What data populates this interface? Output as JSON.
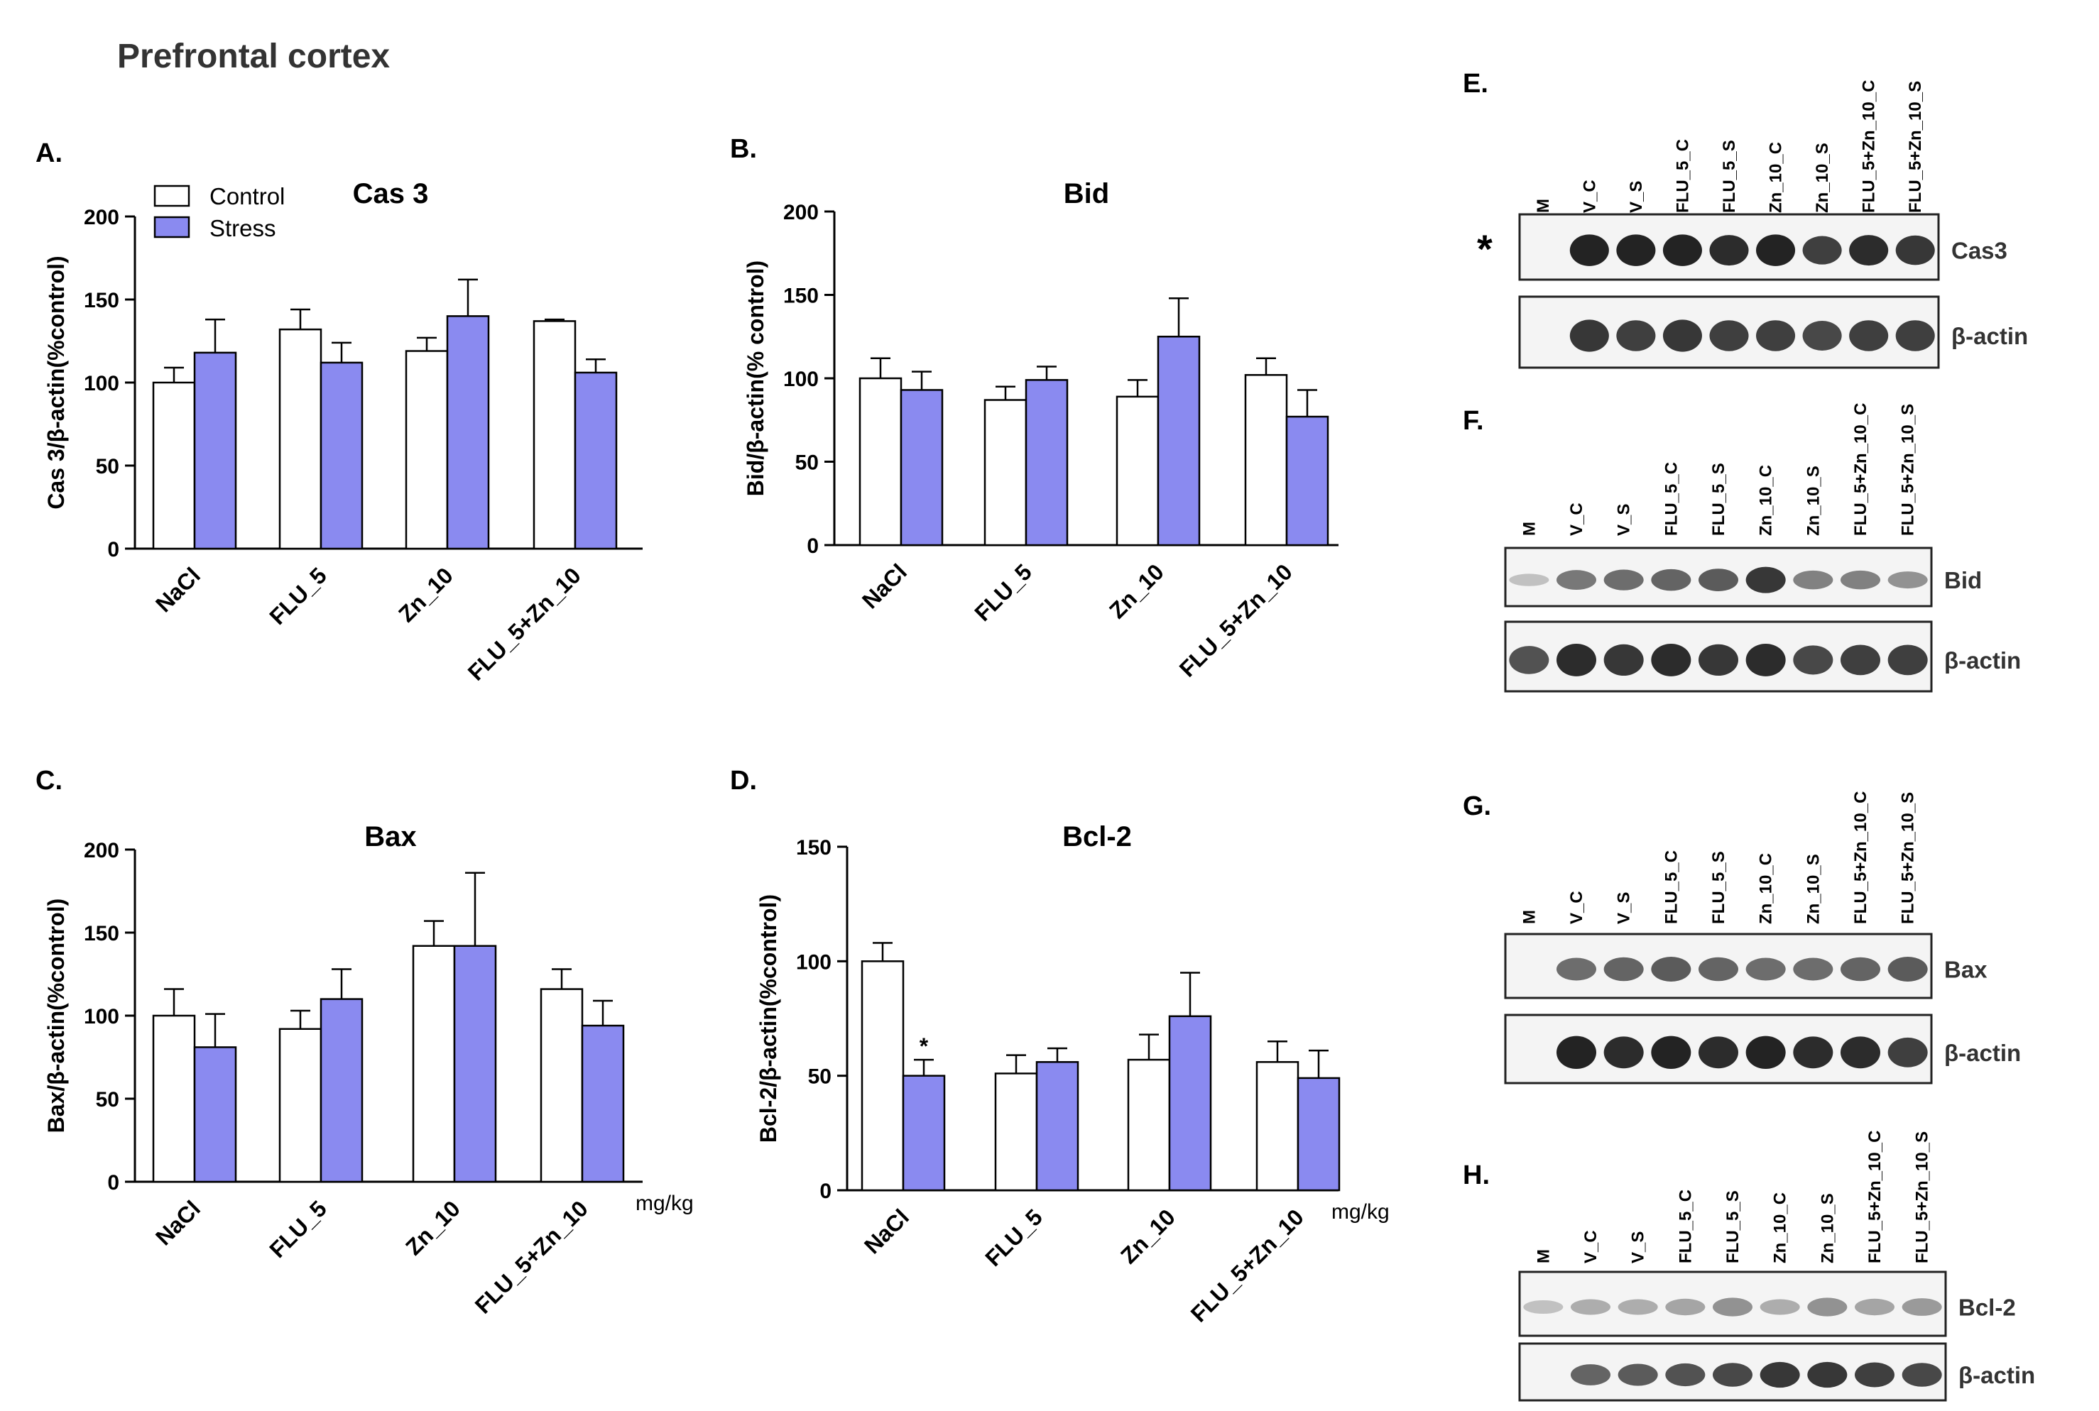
{
  "figure_title": "Prefrontal cortex",
  "unit_label": "mg/kg",
  "legend": {
    "control": "Control",
    "stress": "Stress"
  },
  "colors": {
    "control": "#ffffff",
    "stress": "#8a8af0",
    "axis": "#000000",
    "blot_bg": "#f4f4f4",
    "band": "#1a1a1a"
  },
  "chart_data": [
    {
      "panel": "A.",
      "type": "bar",
      "title": "Cas 3",
      "ylabel": "Cas 3/β-actin(%control)",
      "categories": [
        "NaCl",
        "FLU_5",
        "Zn_10",
        "FLU_5+Zn_10"
      ],
      "ylim": [
        0,
        200
      ],
      "yticks": [
        0,
        50,
        100,
        150,
        200
      ],
      "series": [
        {
          "name": "Control",
          "values": [
            100,
            132,
            119,
            137
          ],
          "errors": [
            9,
            12,
            8,
            1
          ],
          "annotations": [
            "",
            "",
            "",
            ""
          ]
        },
        {
          "name": "Stress",
          "values": [
            118,
            112,
            140,
            106
          ],
          "errors": [
            20,
            12,
            22,
            8
          ],
          "annotations": [
            "",
            "",
            "",
            ""
          ]
        }
      ]
    },
    {
      "panel": "B.",
      "type": "bar",
      "title": "Bid",
      "ylabel": "Bid/β-actin(% control)",
      "categories": [
        "NaCl",
        "FLU_5",
        "Zn_10",
        "FLU_5+Zn_10"
      ],
      "ylim": [
        0,
        200
      ],
      "yticks": [
        0,
        50,
        100,
        150,
        200
      ],
      "series": [
        {
          "name": "Control",
          "values": [
            100,
            87,
            89,
            102
          ],
          "errors": [
            12,
            8,
            10,
            10
          ],
          "annotations": [
            "",
            "",
            "",
            ""
          ]
        },
        {
          "name": "Stress",
          "values": [
            93,
            99,
            125,
            77
          ],
          "errors": [
            11,
            8,
            23,
            16
          ],
          "annotations": [
            "",
            "",
            "",
            ""
          ]
        }
      ]
    },
    {
      "panel": "C.",
      "type": "bar",
      "title": "Bax",
      "ylabel": "Bax/β-actin(%control)",
      "categories": [
        "NaCl",
        "FLU_5",
        "Zn_10",
        "FLU_5+Zn_10"
      ],
      "ylim": [
        0,
        200
      ],
      "yticks": [
        0,
        50,
        100,
        150,
        200
      ],
      "series": [
        {
          "name": "Control",
          "values": [
            100,
            92,
            142,
            116
          ],
          "errors": [
            16,
            11,
            15,
            12
          ],
          "annotations": [
            "",
            "",
            "",
            ""
          ]
        },
        {
          "name": "Stress",
          "values": [
            81,
            110,
            142,
            94
          ],
          "errors": [
            20,
            18,
            44,
            15
          ],
          "annotations": [
            "",
            "",
            "",
            ""
          ]
        }
      ]
    },
    {
      "panel": "D.",
      "type": "bar",
      "title": "Bcl-2",
      "ylabel": "Bcl-2/β-actin(%control)",
      "categories": [
        "NaCl",
        "FLU_5",
        "Zn_10",
        "FLU_5+Zn_10"
      ],
      "ylim": [
        0,
        150
      ],
      "yticks": [
        0,
        50,
        100,
        150
      ],
      "series": [
        {
          "name": "Control",
          "values": [
            100,
            51,
            57,
            56
          ],
          "errors": [
            8,
            8,
            11,
            9
          ],
          "annotations": [
            "",
            "",
            "",
            ""
          ]
        },
        {
          "name": "Stress",
          "values": [
            50,
            56,
            76,
            49
          ],
          "errors": [
            7,
            6,
            19,
            12
          ],
          "annotations": [
            "*",
            "",
            "",
            ""
          ]
        }
      ]
    }
  ],
  "blots": [
    {
      "panel": "E.",
      "marker": "*",
      "lanes": [
        "M",
        "V_C",
        "V_S",
        "FLU_5_C",
        "FLU_5_S",
        "Zn_10_C",
        "Zn_10_S",
        "FLU_5+Zn_10_C",
        "FLU_5+Zn_10_S"
      ],
      "strips": [
        {
          "label": "Cas3",
          "intensity": [
            0,
            0.95,
            0.95,
            0.95,
            0.9,
            0.95,
            0.8,
            0.9,
            0.85
          ]
        },
        {
          "label": "β-actin",
          "intensity": [
            0,
            0.85,
            0.8,
            0.85,
            0.8,
            0.8,
            0.75,
            0.8,
            0.8
          ]
        }
      ]
    },
    {
      "panel": "F.",
      "marker": "",
      "lanes": [
        "M",
        "V_C",
        "V_S",
        "FLU_5_C",
        "FLU_5_S",
        "Zn_10_C",
        "Zn_10_S",
        "FLU_5+Zn_10_C",
        "FLU_5+Zn_10_S"
      ],
      "strips": [
        {
          "label": "Bid",
          "intensity": [
            0.1,
            0.5,
            0.55,
            0.6,
            0.65,
            0.85,
            0.45,
            0.45,
            0.35
          ]
        },
        {
          "label": "β-actin",
          "intensity": [
            0.7,
            0.9,
            0.85,
            0.9,
            0.85,
            0.9,
            0.75,
            0.8,
            0.8
          ]
        }
      ]
    },
    {
      "panel": "G.",
      "marker": "",
      "lanes": [
        "M",
        "V_C",
        "V_S",
        "FLU_5_C",
        "FLU_5_S",
        "Zn_10_C",
        "Zn_10_S",
        "FLU_5+Zn_10_C",
        "FLU_5+Zn_10_S"
      ],
      "strips": [
        {
          "label": "Bax",
          "intensity": [
            0,
            0.55,
            0.6,
            0.65,
            0.6,
            0.55,
            0.55,
            0.6,
            0.65
          ]
        },
        {
          "label": "β-actin",
          "intensity": [
            0,
            0.95,
            0.9,
            0.95,
            0.9,
            0.95,
            0.9,
            0.9,
            0.8
          ]
        }
      ]
    },
    {
      "panel": "H.",
      "marker": "",
      "lanes": [
        "M",
        "V_C",
        "V_S",
        "FLU_5_C",
        "FLU_5_S",
        "Zn_10_C",
        "Zn_10_S",
        "FLU_5+Zn_10_C",
        "FLU_5+Zn_10_S"
      ],
      "strips": [
        {
          "label": "Bcl-2",
          "intensity": [
            0.1,
            0.2,
            0.2,
            0.25,
            0.35,
            0.2,
            0.35,
            0.25,
            0.3
          ]
        },
        {
          "label": "β-actin",
          "intensity": [
            0,
            0.6,
            0.65,
            0.7,
            0.75,
            0.85,
            0.85,
            0.8,
            0.75
          ]
        }
      ]
    }
  ]
}
